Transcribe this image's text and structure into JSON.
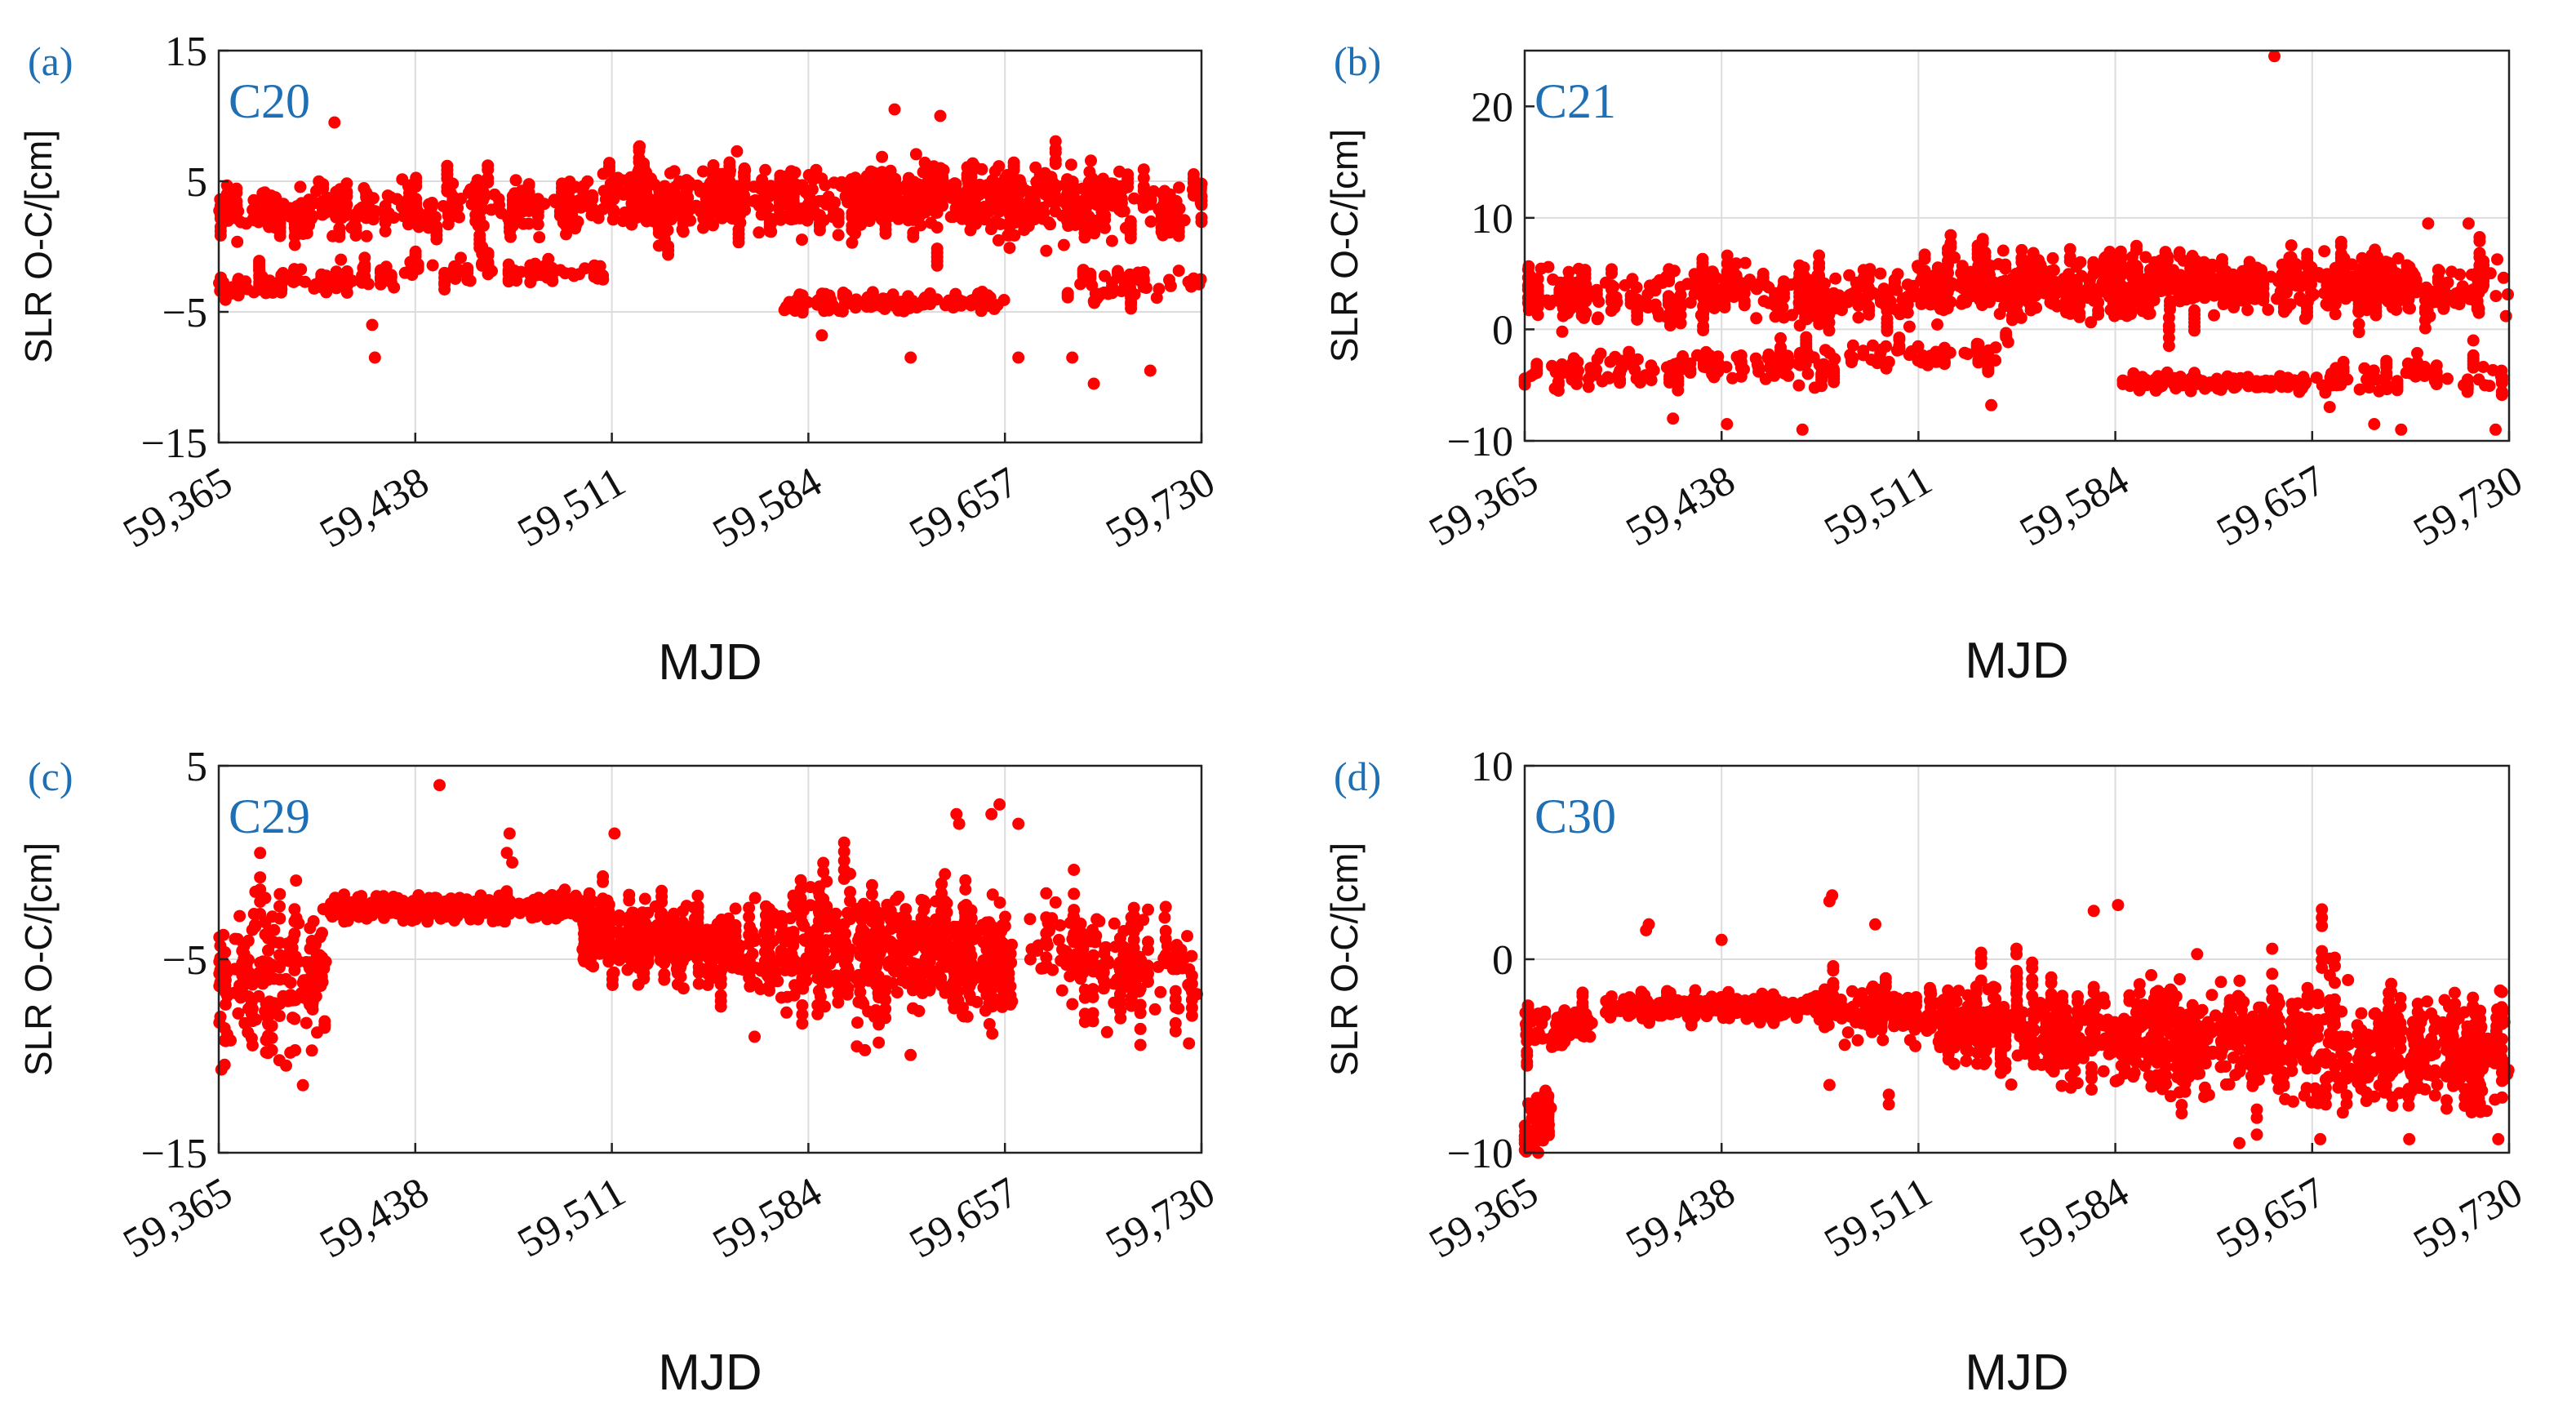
{
  "figure": {
    "colors": {
      "marker": "#ff0000",
      "label": "#1f6fb5",
      "grid": "#dcdcdc",
      "axis": "#222222"
    }
  },
  "chart_data": [
    {
      "type": "scatter",
      "panel_label": "(a)",
      "title": "C20",
      "xlabel": "MJD",
      "ylabel": "SLR O-C/[cm]",
      "xlim": [
        59365,
        59730
      ],
      "ylim": [
        -15,
        15
      ],
      "xticks": [
        59365,
        59438,
        59511,
        59584,
        59657,
        59730
      ],
      "xtick_labels": [
        "59,365",
        "59,438",
        "59,511",
        "59,584",
        "59,657",
        "59,730"
      ],
      "yticks": [
        -15,
        -5,
        5,
        15
      ],
      "ytick_labels": [
        "−15",
        "−5",
        "5",
        "15"
      ],
      "grid": true,
      "bands": [
        {
          "x0": 59365,
          "x1": 59730,
          "ys": 2.8,
          "ye": 3.2,
          "spread": 1.8,
          "n": 520
        },
        {
          "x0": 59510,
          "x1": 59700,
          "ys": 4.5,
          "ye": 4.5,
          "spread": 1.6,
          "n": 260
        },
        {
          "x0": 59365,
          "x1": 59470,
          "ys": -3.0,
          "ye": -1.5,
          "spread": 1.0,
          "n": 80
        },
        {
          "x0": 59470,
          "x1": 59510,
          "ys": -1.8,
          "ye": -1.8,
          "spread": 0.8,
          "n": 35
        },
        {
          "x0": 59575,
          "x1": 59660,
          "ys": -4.3,
          "ye": -4.3,
          "spread": 0.5,
          "n": 120
        },
        {
          "x0": 59680,
          "x1": 59730,
          "ys": -3.5,
          "ye": -2.5,
          "spread": 0.9,
          "n": 40
        }
      ],
      "points": [
        [
          59408,
          9.5
        ],
        [
          59422,
          -6
        ],
        [
          59423,
          -8.5
        ],
        [
          59616,
          10.5
        ],
        [
          59633,
          10
        ],
        [
          59690,
          -10.5
        ],
        [
          59682,
          -8.5
        ],
        [
          59622,
          -8.5
        ],
        [
          59662,
          -8.5
        ],
        [
          59711,
          -9.5
        ],
        [
          59589,
          -6.8
        ]
      ]
    },
    {
      "type": "scatter",
      "panel_label": "(b)",
      "title": "C21",
      "xlabel": "MJD",
      "ylabel": "SLR O-C/[cm]",
      "xlim": [
        59365,
        59730
      ],
      "ylim": [
        -10,
        25
      ],
      "xticks": [
        59365,
        59438,
        59511,
        59584,
        59657,
        59730
      ],
      "xtick_labels": [
        "59,365",
        "59,438",
        "59,511",
        "59,584",
        "59,657",
        "59,730"
      ],
      "yticks": [
        -10,
        0,
        10,
        20
      ],
      "ytick_labels": [
        "−10",
        "0",
        "10",
        "20"
      ],
      "grid": true,
      "bands": [
        {
          "x0": 59365,
          "x1": 59730,
          "ys": 3,
          "ye": 3.5,
          "spread": 2.0,
          "n": 520
        },
        {
          "x0": 59510,
          "x1": 59700,
          "ys": 4.5,
          "ye": 4.5,
          "spread": 2.0,
          "n": 260
        },
        {
          "x0": 59365,
          "x1": 59480,
          "ys": -4,
          "ye": -3,
          "spread": 1.5,
          "n": 110
        },
        {
          "x0": 59485,
          "x1": 59545,
          "ys": -2.5,
          "ye": -2.0,
          "spread": 1.0,
          "n": 40
        },
        {
          "x0": 59585,
          "x1": 59655,
          "ys": -4.8,
          "ye": -4.8,
          "spread": 0.5,
          "n": 110
        },
        {
          "x0": 59655,
          "x1": 59730,
          "ys": -5,
          "ye": -3.5,
          "spread": 1.5,
          "n": 50
        }
      ],
      "points": [
        [
          59643,
          24.5
        ],
        [
          59440,
          -8.5
        ],
        [
          59420,
          -8
        ],
        [
          59468,
          -9
        ],
        [
          59538,
          -6.8
        ],
        [
          59725,
          -9
        ],
        [
          59690,
          -9
        ],
        [
          59680,
          -8.5
        ],
        [
          59700,
          9.5
        ],
        [
          59715,
          9.5
        ]
      ]
    },
    {
      "type": "scatter",
      "panel_label": "(c)",
      "title": "C29",
      "xlabel": "MJD",
      "ylabel": "SLR O-C/[cm]",
      "xlim": [
        59365,
        59730
      ],
      "ylim": [
        -15,
        5
      ],
      "xticks": [
        59365,
        59438,
        59511,
        59584,
        59657,
        59730
      ],
      "xtick_labels": [
        "59,365",
        "59,438",
        "59,511",
        "59,584",
        "59,657",
        "59,730"
      ],
      "yticks": [
        -15,
        -5,
        5
      ],
      "ytick_labels": [
        "−15",
        "−5",
        "5"
      ],
      "grid": true,
      "bands": [
        {
          "x0": 59365,
          "x1": 59405,
          "ys": -6,
          "ye": -6,
          "spread": 3.5,
          "n": 140
        },
        {
          "x0": 59405,
          "x1": 59500,
          "ys": -2.3,
          "ye": -2.3,
          "spread": 0.5,
          "n": 240
        },
        {
          "x0": 59500,
          "x1": 59560,
          "ys": -3.5,
          "ye": -4.5,
          "spread": 1.6,
          "n": 190
        },
        {
          "x0": 59560,
          "x1": 59660,
          "ys": -4.5,
          "ye": -5,
          "spread": 2.6,
          "n": 340
        },
        {
          "x0": 59665,
          "x1": 59730,
          "ys": -4.5,
          "ye": -5.5,
          "spread": 2.3,
          "n": 120
        }
      ],
      "points": [
        [
          59447,
          4
        ],
        [
          59472,
          0.5
        ],
        [
          59473,
          1.5
        ],
        [
          59474,
          0
        ],
        [
          59512,
          1.5
        ],
        [
          59652,
          2.5
        ],
        [
          59655,
          3
        ],
        [
          59662,
          2
        ],
        [
          59640,
          2
        ],
        [
          59639,
          2.5
        ],
        [
          59602,
          -9.5
        ],
        [
          59605,
          -9.7
        ],
        [
          59390,
          -10.5
        ],
        [
          59366,
          -10.7
        ]
      ]
    },
    {
      "type": "scatter",
      "panel_label": "(d)",
      "title": "C30",
      "xlabel": "MJD",
      "ylabel": "SLR O-C/[cm]",
      "xlim": [
        59365,
        59730
      ],
      "ylim": [
        -10,
        10
      ],
      "xticks": [
        59365,
        59438,
        59511,
        59584,
        59657,
        59730
      ],
      "xtick_labels": [
        "59,365",
        "59,438",
        "59,511",
        "59,584",
        "59,657",
        "59,730"
      ],
      "yticks": [
        -10,
        0,
        10
      ],
      "ytick_labels": [
        "−10",
        "0",
        "10"
      ],
      "grid": true,
      "bands": [
        {
          "x0": 59365,
          "x1": 59375,
          "ys": -9,
          "ye": -8,
          "spread": 1.0,
          "n": 40
        },
        {
          "x0": 59365,
          "x1": 59390,
          "ys": -3.5,
          "ye": -3.5,
          "spread": 1.0,
          "n": 50
        },
        {
          "x0": 59395,
          "x1": 59470,
          "ys": -2.5,
          "ye": -2.5,
          "spread": 0.5,
          "n": 160
        },
        {
          "x0": 59470,
          "x1": 59520,
          "ys": -2.5,
          "ye": -3,
          "spread": 1.2,
          "n": 90
        },
        {
          "x0": 59520,
          "x1": 59590,
          "ys": -3.5,
          "ye": -4,
          "spread": 1.6,
          "n": 200
        },
        {
          "x0": 59590,
          "x1": 59730,
          "ys": -4,
          "ye": -5,
          "spread": 2.4,
          "n": 460
        }
      ],
      "points": [
        [
          59410,
          1.5
        ],
        [
          59411,
          1.8
        ],
        [
          59438,
          1
        ],
        [
          59478,
          3
        ],
        [
          59479,
          3.3
        ],
        [
          59495,
          1.8
        ],
        [
          59478,
          -6.5
        ],
        [
          59500,
          -7.5
        ],
        [
          59500,
          -7
        ],
        [
          59576,
          2.5
        ],
        [
          59585,
          2.8
        ],
        [
          59630,
          -9.5
        ],
        [
          59660,
          -9.3
        ],
        [
          59693,
          -9.3
        ],
        [
          59726,
          -9.3
        ],
        [
          59370,
          -10
        ]
      ]
    }
  ]
}
